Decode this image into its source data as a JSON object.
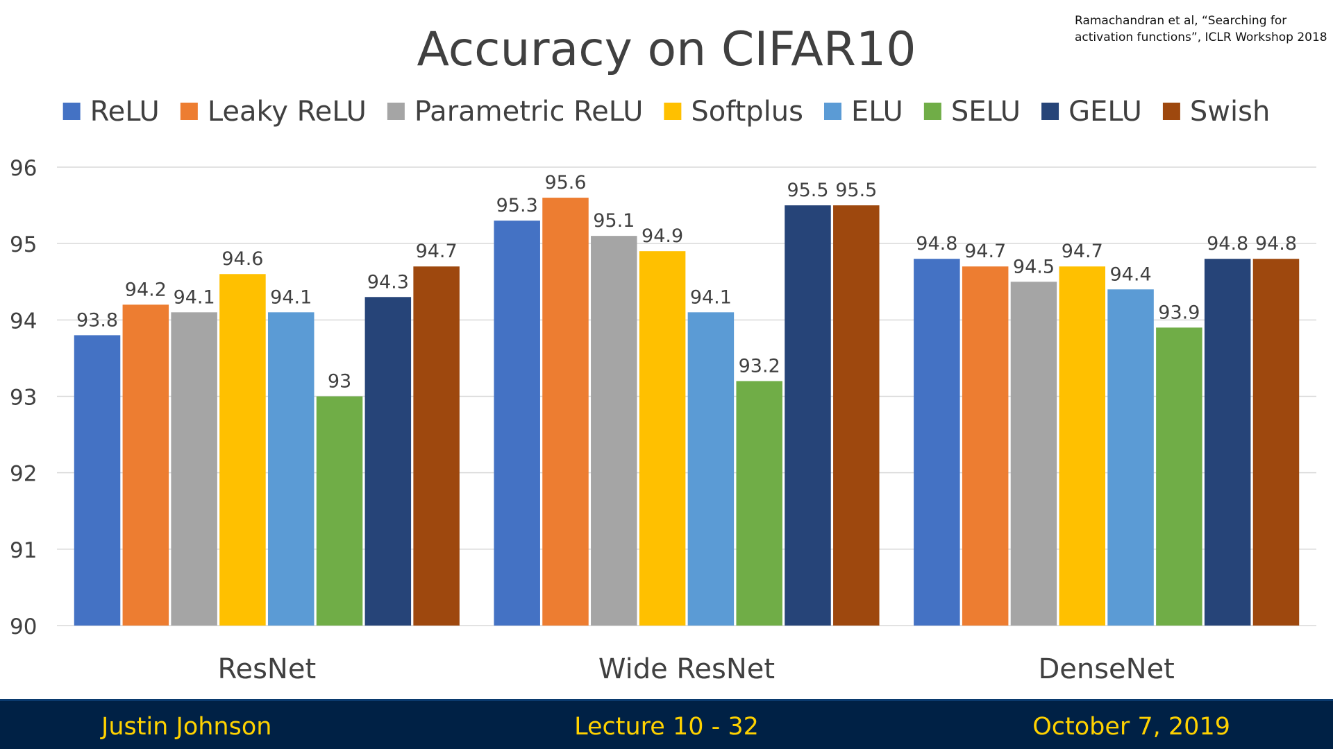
{
  "citation": {
    "line1": "Ramachandran et al, “Searching for",
    "line2": "activation functions”, ICLR Workshop 2018"
  },
  "chart_data": {
    "type": "bar",
    "title": "Accuracy on CIFAR10",
    "xlabel": "",
    "ylabel": "",
    "ylim": [
      90,
      96
    ],
    "yticks": [
      90,
      91,
      92,
      93,
      94,
      95,
      96
    ],
    "grid": true,
    "legend_position": "top",
    "data_labels": true,
    "categories": [
      "ResNet",
      "Wide ResNet",
      "DenseNet"
    ],
    "series": [
      {
        "name": "ReLU",
        "color": "#4472c4",
        "values": [
          93.8,
          95.3,
          94.8
        ]
      },
      {
        "name": "Leaky ReLU",
        "color": "#ed7d31",
        "values": [
          94.2,
          95.6,
          94.7
        ]
      },
      {
        "name": "Parametric ReLU",
        "color": "#a5a5a5",
        "values": [
          94.1,
          95.1,
          94.5
        ]
      },
      {
        "name": "Softplus",
        "color": "#ffc000",
        "values": [
          94.6,
          94.9,
          94.7
        ]
      },
      {
        "name": "ELU",
        "color": "#5b9bd5",
        "values": [
          94.1,
          94.1,
          94.4
        ]
      },
      {
        "name": "SELU",
        "color": "#70ad47",
        "values": [
          93,
          93.2,
          93.9
        ]
      },
      {
        "name": "GELU",
        "color": "#264478",
        "values": [
          94.3,
          95.5,
          94.8
        ]
      },
      {
        "name": "Swish",
        "color": "#9e480e",
        "values": [
          94.7,
          95.5,
          94.8
        ]
      }
    ]
  },
  "footer": {
    "author": "Justin Johnson",
    "lecture": "Lecture 10 - 32",
    "date": "October 7, 2019"
  },
  "colors": {
    "footer_bg": "#002145",
    "footer_text": "#ffd200",
    "title_text": "#404040"
  }
}
